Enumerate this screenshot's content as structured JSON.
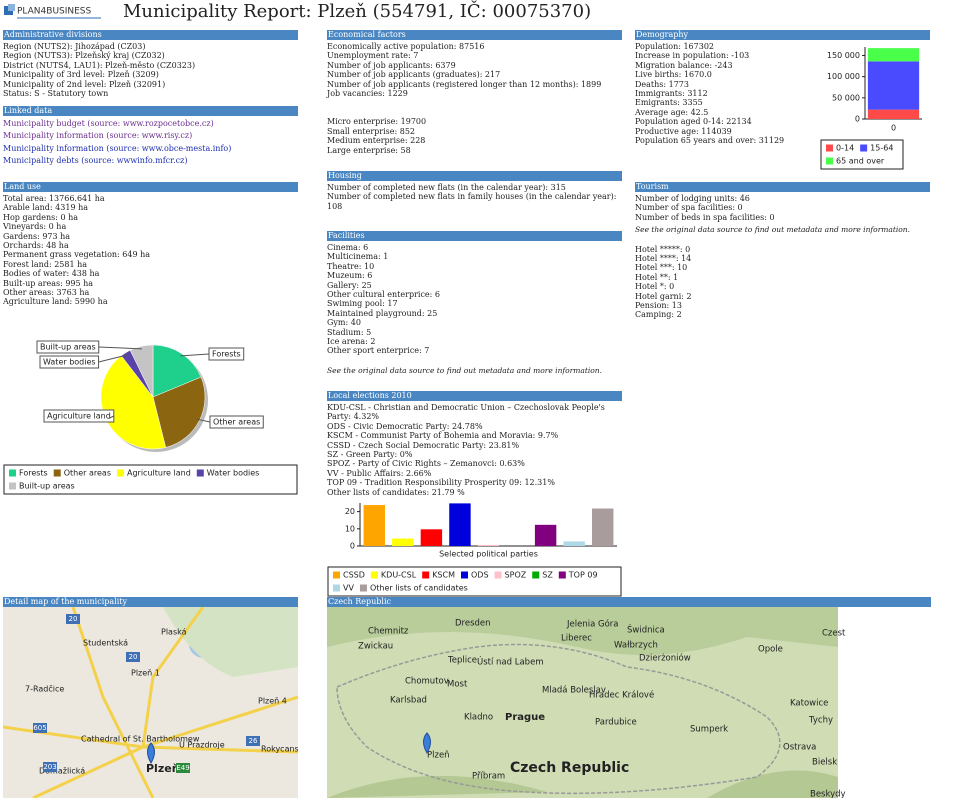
{
  "header": {
    "logo": "PLAN4BUSINESS",
    "title": "Municipality Report: Plzeň (554791, IČ: 00075370)"
  },
  "admin": {
    "title": "Administrative divisions",
    "lines": [
      "Region (NUTS2): Jihozápad (CZ03)",
      "Region (NUTS3): Plzeňský kraj (CZ032)",
      "District (NUTS4, LAU1): Plzeň-město (CZ0323)",
      "Municipality of 3rd level: Plzeň (3209)",
      "Municipality of 2nd level: Plzeň (32091)",
      "Status: S - Statutory town"
    ]
  },
  "linked": {
    "title": "Linked data",
    "links": [
      "Municipality budget (source: www.rozpocetobce.cz)",
      "Municipality information (source: www.risy.cz)",
      "Municipality information (source: www.obce-mesta.info)",
      "Municipality debts (source: wwwinfo.mfcr.cz)"
    ]
  },
  "land_use": {
    "title": "Land use",
    "lines": [
      "Total area: 13766.641 ha",
      "Arable land: 4319 ha",
      "Hop gardens: 0 ha",
      "Vineyards: 0 ha",
      "Gardens: 973 ha",
      "Orchards: 48 ha",
      "Permanent grass vegetation: 649 ha",
      "Forest land: 2581 ha",
      "Bodies of water: 438 ha",
      "Built-up areas: 995 ha",
      "Other areas: 3763 ha",
      "Agriculture land: 5990 ha"
    ]
  },
  "economic": {
    "title": "Economical factors",
    "lines": [
      "Economically active population: 87516",
      "Unemployment rate: 7",
      "Number of job applicants: 6379",
      "Number of job applicants (graduates): 217",
      "Number of job applicants (registered longer than 12 months): 1899",
      "Job vacancies: 1229"
    ],
    "enterprise_lines": [
      "Micro enterprise: 19700",
      "Small enterprise: 852",
      "Medium enterprise: 228",
      "Large enterprise: 58"
    ]
  },
  "housing": {
    "title": "Housing",
    "lines": [
      "Number of completed new flats (in the calendar year): 315",
      "Number of completed new flats in family houses (in the calendar year): 108"
    ]
  },
  "facilities": {
    "title": "Facilities",
    "lines": [
      "Cinema: 6",
      "Multicinema: 1",
      "Theatre: 10",
      "Muzeum: 6",
      "Gallery: 25",
      "Other cultural enterprice: 6",
      "Swiming pool: 17",
      "Maintained playground: 25",
      "Gym: 40",
      "Stadium: 5",
      "Ice arena: 2",
      "Other sport enterprice: 7"
    ],
    "note": "See the original data source to find out metadata and more information."
  },
  "elections": {
    "title": "Local elections 2010",
    "lines": [
      "KDU-CSL - Christian and Democratic Union – Czechoslovak People's Party: 4.32%",
      "ODS - Civic Democratic Party: 24.78%",
      "KSCM - Communist Party of Bohemia and Moravia: 9.7%",
      "CSSD - Czech Social Democratic Party: 23.81%",
      "SZ - Green Party: 0%",
      "SPOZ - Party of Civic Rights – Zemanovci: 0.63%",
      "VV - Public Affairs: 2.66%",
      "TOP 09 - Tradition Responsibility Prosperity 09: 12.31%",
      "Other lists of candidates: 21.79 %"
    ]
  },
  "demography": {
    "title": "Demography",
    "lines": [
      "Population: 167302",
      "Increase in population: -103",
      "Migration balance: -243",
      "Live births: 1670.0",
      "Deaths: 1773",
      "Immigrants: 3112",
      "Emigrants: 3355",
      "Average age: 42.5",
      "Population aged 0-14: 22134",
      "Productive age: 114039",
      "Population 65 years and over: 31129"
    ]
  },
  "tourism": {
    "title": "Tourism",
    "lines": [
      "Number of lodging units: 46",
      "Number of spa facilities: 0",
      "Number of beds in spa facilities: 0"
    ],
    "note": "See the original data source to find out metadata and more information.",
    "hotel_lines": [
      "Hotel *****: 0",
      "Hotel ****: 14",
      "Hotel ***: 10",
      "Hotel **: 1",
      "Hotel *: 0",
      "Hotel garni: 2",
      "Pension: 13",
      "Camping: 2"
    ]
  },
  "map_detail": {
    "title": "Detail map of the municipality",
    "labels": [
      "Studentská",
      "Plaská",
      "Plzeň 1",
      "7-Radčice",
      "Plzeň 4",
      "Cathedral of St. Bartholomew",
      "U Prazdroje",
      "Rokycanská",
      "Domažlická",
      "Plzeň"
    ],
    "road_numbers": [
      "20",
      "20",
      "605",
      "203",
      "26",
      "E49"
    ]
  },
  "map_country": {
    "title": "Czech Republic",
    "labels": [
      "Chemnitz",
      "Dresden",
      "Jelenia Góra",
      "Świdnica",
      "Zwickau",
      "Liberec",
      "Wałbrzych",
      "Teplice",
      "Ústí nad Labem",
      "Dzierżoniów",
      "Opole",
      "Czest",
      "Chomutov",
      "Most",
      "Mladá Boleslav",
      "Hradec Králové",
      "Karlsbad",
      "Katowice",
      "Kladno",
      "Prague",
      "Pardubice",
      "Tychy",
      "Sumperk",
      "Ostrava",
      "Plzeň",
      "Czech Republic",
      "Příbram",
      "Bielsk",
      "Beskydy"
    ]
  },
  "chart_data": [
    {
      "type": "pie",
      "categories": [
        "Forests",
        "Other areas",
        "Agriculture land",
        "Water bodies",
        "Built-up areas"
      ],
      "values": [
        2581,
        3763,
        5990,
        438,
        995
      ],
      "colors": [
        "#1ed08c",
        "#8b6510",
        "#ffff00",
        "#5a43a8",
        "#c4c4c4"
      ]
    },
    {
      "type": "bar",
      "categories": [
        "0"
      ],
      "series": [
        {
          "name": "0-14",
          "color": "#ff4a4a",
          "values": [
            22134
          ]
        },
        {
          "name": "15-64",
          "color": "#4a4aff",
          "values": [
            114039
          ]
        },
        {
          "name": "65 and over",
          "color": "#4aff4a",
          "values": [
            31129
          ]
        }
      ],
      "ylim": [
        0,
        170000
      ],
      "yticks": [
        {
          "value": 0,
          "label": "0"
        },
        {
          "value": 50000,
          "label": "50 000"
        },
        {
          "value": 100000,
          "label": "100 000"
        },
        {
          "value": 150000,
          "label": "150 000"
        }
      ]
    },
    {
      "type": "bar",
      "categories": [
        "CSSD",
        "KDU-CSL",
        "KSCM",
        "ODS",
        "SPOZ",
        "SZ",
        "TOP 09",
        "VV",
        "Other lists of candidates"
      ],
      "values": [
        23.81,
        4.32,
        9.7,
        24.78,
        0.63,
        0,
        12.31,
        2.66,
        21.79
      ],
      "colors": [
        "#ffa500",
        "#ffff00",
        "#ff0000",
        "#0000dd",
        "#ffc0cb",
        "#00aa00",
        "#800080",
        "#add8e6",
        "#a89c9c"
      ],
      "xlabel": "Selected political parties",
      "ylim": [
        0,
        25
      ],
      "yticks": [
        0,
        10,
        20
      ]
    }
  ]
}
